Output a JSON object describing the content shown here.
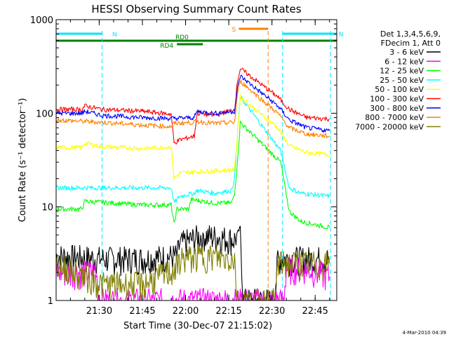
{
  "chart_data": {
    "type": "line",
    "title": "HESSI Observing Summary Count Rates",
    "xlabel": "Start Time (30-Dec-07 21:15:02)",
    "ylabel": "Count Rate (s⁻¹ detector⁻¹)",
    "yscale": "log",
    "ylim": [
      1,
      1000
    ],
    "xlim": [
      "21:15:02",
      "22:52:30"
    ],
    "x_ticks": [
      "21:30",
      "21:45",
      "22:00",
      "22:15",
      "22:30",
      "22:45"
    ],
    "y_ticks": [
      "1",
      "10",
      "100",
      "1000"
    ],
    "grid": false,
    "legend_position": "right",
    "legend_header": [
      "Det 1,3,4,5,6,9,",
      "FDecim 1, Att 0"
    ],
    "timestamp": "4-Mar-2010 04:39",
    "flags": [
      {
        "label": "N",
        "start": "21:15:02",
        "end": "21:31:00",
        "color": "#00e5ff"
      },
      {
        "label": "N",
        "start": "22:33:40",
        "end": "22:52:30",
        "color": "#00e5ff"
      },
      {
        "label": "S",
        "start": "22:18:30",
        "end": "22:28:40",
        "color": "#ff7f00"
      },
      {
        "label": "RD0",
        "start": "21:15:02",
        "end": "22:52:30",
        "color": "#008000"
      },
      {
        "label": "RD4",
        "start": "21:57:00",
        "end": "22:06:00",
        "color": "#008000"
      }
    ],
    "boundaries": [
      {
        "time": "21:31:00",
        "color": "#00e5ff"
      },
      {
        "time": "22:33:40",
        "color": "#00e5ff"
      },
      {
        "time": "22:50:20",
        "color": "#00e5ff"
      },
      {
        "time": "22:28:40",
        "color": "#ff7f00"
      }
    ],
    "series": [
      {
        "name": "3 - 6 keV",
        "color": "#000000",
        "points": [
          [
            "21:15",
            3
          ],
          [
            "21:31",
            2.8
          ],
          [
            "21:45",
            2.8
          ],
          [
            "21:57",
            3
          ],
          [
            "21:58",
            4
          ],
          [
            "22:06",
            5
          ],
          [
            "22:17",
            4.5
          ],
          [
            "22:19",
            6
          ],
          [
            "22:20",
            1
          ],
          [
            "22:31",
            1
          ],
          [
            "22:32",
            2.8
          ],
          [
            "22:40",
            2.8
          ],
          [
            "22:50",
            2.8
          ]
        ]
      },
      {
        "name": "6 - 12 keV",
        "color": "#ff00ff",
        "points": [
          [
            "21:15",
            2
          ],
          [
            "21:29",
            2
          ],
          [
            "21:30",
            1
          ],
          [
            "22:34",
            1
          ],
          [
            "22:35",
            2.2
          ],
          [
            "22:42",
            2.2
          ],
          [
            "22:50",
            1.8
          ]
        ]
      },
      {
        "name": "12 - 25 keV",
        "color": "#00ff00",
        "points": [
          [
            "21:15",
            9.5
          ],
          [
            "21:24",
            9.5
          ],
          [
            "21:25",
            11.5
          ],
          [
            "21:45",
            10.5
          ],
          [
            "21:55",
            10.5
          ],
          [
            "21:56",
            6.5
          ],
          [
            "21:57",
            9.5
          ],
          [
            "22:01",
            9.5
          ],
          [
            "22:02",
            12
          ],
          [
            "22:10",
            11
          ],
          [
            "22:16",
            11
          ],
          [
            "22:17",
            14
          ],
          [
            "22:18",
            30
          ],
          [
            "22:19",
            80
          ],
          [
            "22:33",
            30
          ],
          [
            "22:36",
            9
          ],
          [
            "22:40",
            7
          ],
          [
            "22:50",
            6
          ]
        ]
      },
      {
        "name": "25 - 50 keV",
        "color": "#00ffff",
        "points": [
          [
            "21:15",
            16
          ],
          [
            "21:31",
            16
          ],
          [
            "21:45",
            16
          ],
          [
            "21:55",
            16
          ],
          [
            "21:56",
            11
          ],
          [
            "21:58",
            13
          ],
          [
            "22:03",
            14
          ],
          [
            "22:04",
            15
          ],
          [
            "22:10",
            14
          ],
          [
            "22:16",
            15
          ],
          [
            "22:17",
            20
          ],
          [
            "22:18",
            60
          ],
          [
            "22:19",
            150
          ],
          [
            "22:33",
            40
          ],
          [
            "22:36",
            16
          ],
          [
            "22:40",
            14
          ],
          [
            "22:50",
            13
          ]
        ]
      },
      {
        "name": "50 - 100 keV",
        "color": "#ffff00",
        "points": [
          [
            "21:15",
            43
          ],
          [
            "21:24",
            43
          ],
          [
            "21:25",
            48
          ],
          [
            "21:31",
            44
          ],
          [
            "21:45",
            42
          ],
          [
            "21:55",
            44
          ],
          [
            "21:56",
            20
          ],
          [
            "21:58",
            23
          ],
          [
            "22:06",
            24
          ],
          [
            "22:17",
            25
          ],
          [
            "22:18",
            60
          ],
          [
            "22:19",
            150
          ],
          [
            "22:32",
            70
          ],
          [
            "22:36",
            45
          ],
          [
            "22:42",
            38
          ],
          [
            "22:50",
            36
          ]
        ]
      },
      {
        "name": "100 - 300 keV",
        "color": "#ff0000",
        "points": [
          [
            "21:15",
            110
          ],
          [
            "21:24",
            110
          ],
          [
            "21:25",
            120
          ],
          [
            "21:31",
            110
          ],
          [
            "21:45",
            105
          ],
          [
            "21:55",
            98
          ],
          [
            "21:56",
            48
          ],
          [
            "21:58",
            52
          ],
          [
            "22:03",
            57
          ],
          [
            "22:04",
            100
          ],
          [
            "22:10",
            95
          ],
          [
            "22:17",
            110
          ],
          [
            "22:18",
            220
          ],
          [
            "22:19",
            300
          ],
          [
            "22:32",
            150
          ],
          [
            "22:36",
            110
          ],
          [
            "22:42",
            90
          ],
          [
            "22:50",
            87
          ]
        ]
      },
      {
        "name": "300 - 800 keV",
        "color": "#0000ff",
        "points": [
          [
            "21:15",
            100
          ],
          [
            "21:24",
            100
          ],
          [
            "21:25",
            105
          ],
          [
            "21:31",
            95
          ],
          [
            "21:45",
            90
          ],
          [
            "21:55",
            88
          ],
          [
            "22:03",
            90
          ],
          [
            "22:04",
            105
          ],
          [
            "22:10",
            100
          ],
          [
            "22:17",
            105
          ],
          [
            "22:18",
            180
          ],
          [
            "22:19",
            250
          ],
          [
            "22:32",
            120
          ],
          [
            "22:36",
            85
          ],
          [
            "22:42",
            70
          ],
          [
            "22:50",
            65
          ]
        ]
      },
      {
        "name": "800 - 7000 keV",
        "color": "#ff7f00",
        "points": [
          [
            "21:15",
            85
          ],
          [
            "21:31",
            80
          ],
          [
            "21:45",
            75
          ],
          [
            "21:55",
            72
          ],
          [
            "21:56",
            78
          ],
          [
            "22:03",
            80
          ],
          [
            "22:04",
            82
          ],
          [
            "22:10",
            78
          ],
          [
            "22:17",
            80
          ],
          [
            "22:18",
            160
          ],
          [
            "22:19",
            220
          ],
          [
            "22:32",
            100
          ],
          [
            "22:36",
            70
          ],
          [
            "22:42",
            60
          ],
          [
            "22:50",
            57
          ]
        ]
      },
      {
        "name": "7000 - 20000 keV",
        "color": "#808000",
        "points": [
          [
            "21:15",
            2.5
          ],
          [
            "21:31",
            1.5
          ],
          [
            "21:45",
            1.5
          ],
          [
            "21:57",
            2.2
          ],
          [
            "21:58",
            2.8
          ],
          [
            "22:06",
            3
          ],
          [
            "22:17",
            2.8
          ],
          [
            "22:18",
            1
          ],
          [
            "22:31",
            1
          ],
          [
            "22:32",
            2.5
          ],
          [
            "22:40",
            2.5
          ],
          [
            "22:50",
            2.5
          ]
        ]
      }
    ]
  }
}
